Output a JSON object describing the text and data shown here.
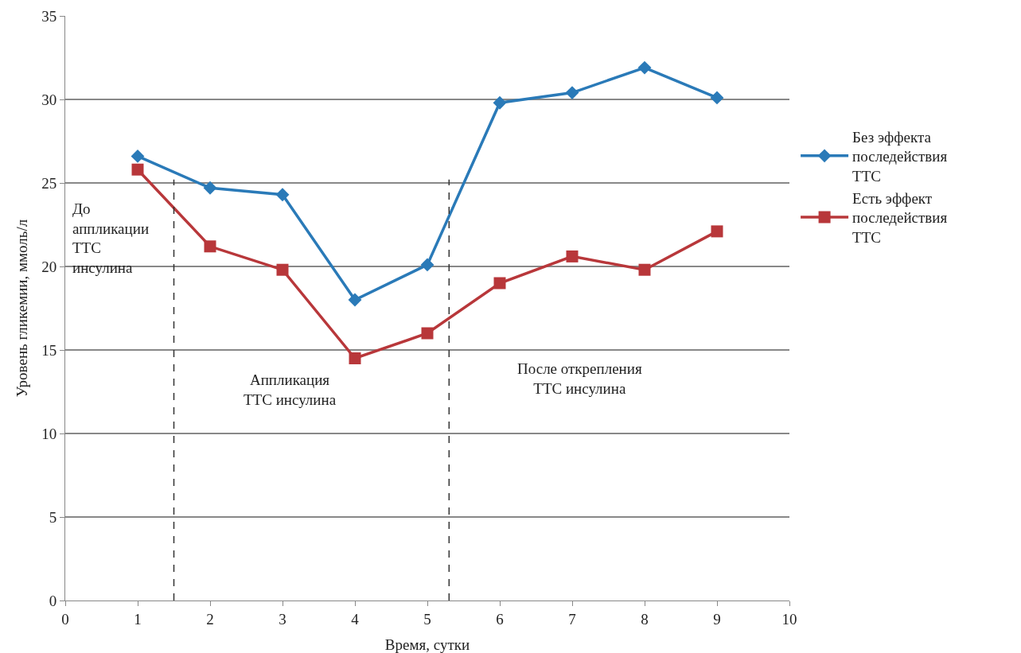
{
  "chart_data": {
    "type": "line",
    "xlabel": "Время, сутки",
    "ylabel": "Уровень гликемии, ммоль/л",
    "x": [
      1,
      2,
      3,
      4,
      5,
      6,
      7,
      8,
      9
    ],
    "series": [
      {
        "name": "Без эффекта последействия ТТС",
        "color": "#2a7ab8",
        "marker": "diamond",
        "values": [
          26.6,
          24.7,
          24.3,
          18.0,
          20.1,
          29.8,
          30.4,
          31.9,
          30.1
        ]
      },
      {
        "name": "Есть эффект последействия ТТС",
        "color": "#b8373a",
        "marker": "square",
        "values": [
          25.8,
          21.2,
          19.8,
          14.5,
          16.0,
          19.0,
          20.6,
          19.8,
          22.1
        ]
      }
    ],
    "xlim": [
      0,
      10
    ],
    "xticks": [
      0,
      1,
      2,
      3,
      4,
      5,
      6,
      7,
      8,
      9,
      10
    ],
    "ylim": [
      0,
      35
    ],
    "yticks": [
      0,
      5,
      10,
      15,
      20,
      25,
      30,
      35
    ],
    "grid": "y",
    "legend": "right",
    "line_style": "solid",
    "ref_lines": [
      {
        "axis": "x",
        "value": 1.5,
        "line_style": "dashed",
        "color": "#333333"
      },
      {
        "axis": "x",
        "value": 5.3,
        "line_style": "dashed",
        "color": "#333333"
      }
    ],
    "annotations": [
      "До аппликации ТТС инсулина",
      "Аппликация ТТС инсулина",
      "После открепления ТТС инсулина"
    ]
  }
}
